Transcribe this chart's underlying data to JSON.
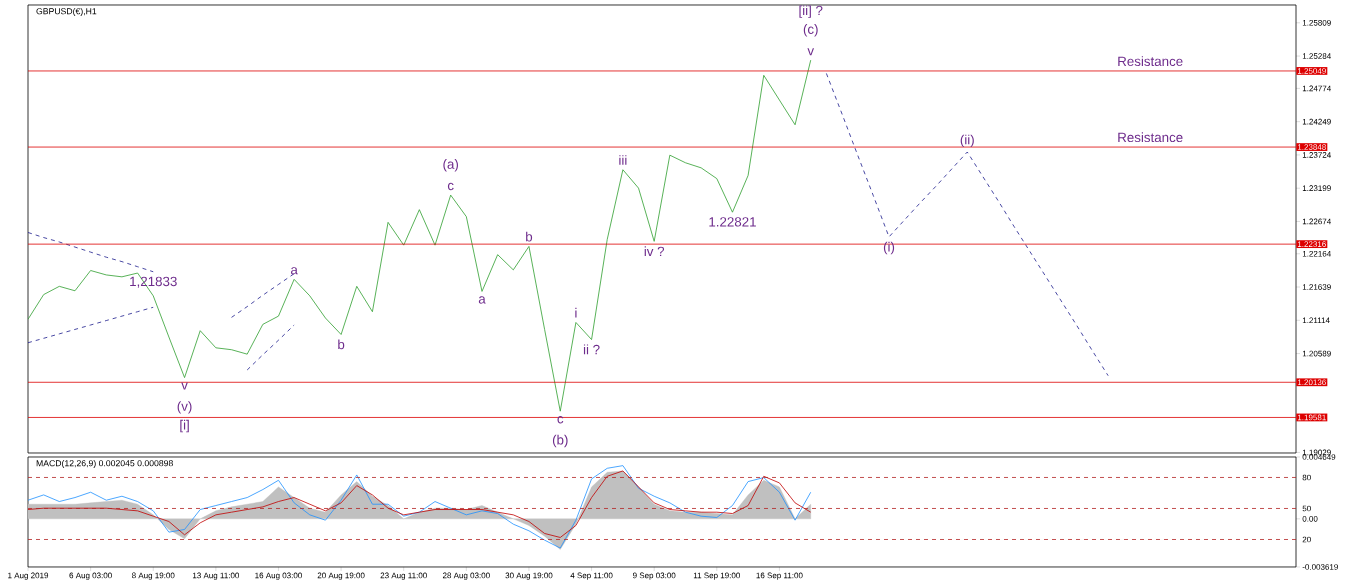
{
  "chart_data": [
    {
      "type": "line",
      "title": "GBPUSD(€),H1",
      "categories": [
        null,
        null,
        null,
        null,
        null,
        null,
        null,
        null,
        null,
        null,
        null,
        null,
        null,
        null,
        null,
        null,
        null,
        null,
        null,
        null,
        null,
        null,
        null,
        null,
        null,
        null,
        null,
        null,
        null,
        null,
        null,
        null,
        null,
        null,
        null,
        null,
        null,
        null,
        null,
        null,
        null,
        null,
        null,
        null,
        null,
        null,
        null,
        null,
        null,
        null,
        null,
        null,
        null,
        null,
        null,
        null,
        null,
        null,
        null,
        null,
        null,
        null,
        null,
        null,
        null,
        null,
        null,
        null,
        null,
        null,
        null,
        null,
        null,
        null,
        null,
        null,
        null,
        null,
        null,
        null,
        null,
        null
      ],
      "ylim": [
        1.1902,
        1.2609
      ],
      "tick_labels": "y",
      "yticks": [
        1.25809,
        1.25284,
        1.24774,
        1.24249,
        1.23724,
        1.23199,
        1.22674,
        1.22164,
        1.21639,
        1.21114,
        1.20589,
        1.19029
      ],
      "grid": false,
      "marker": "none",
      "series": [
        {
          "color": "#2e9e2e",
          "line_style": "solid",
          "values": [
            1.2113,
            1.2152,
            1.2165,
            1.2158,
            1.219,
            1.2183,
            1.218,
            1.2186,
            1.215,
            1.2085,
            1.2021,
            1.2095,
            1.2068,
            1.2065,
            1.2058,
            1.2105,
            1.2118,
            1.2176,
            1.215,
            1.2115,
            1.2089,
            1.2165,
            1.2125,
            1.2266,
            1.223,
            1.2286,
            1.223,
            1.2309,
            1.2275,
            1.2157,
            1.2215,
            1.2191,
            1.2228,
            1.2097,
            1.1968,
            1.2108,
            1.2081,
            1.2239,
            1.2349,
            1.232,
            1.2236,
            1.2372,
            1.236,
            1.2352,
            1.2335,
            1.2282,
            1.234,
            1.2498,
            1.2459,
            1.242,
            1.2522,
            null,
            null,
            null,
            null,
            null,
            null,
            null,
            null,
            null,
            null,
            null,
            null,
            null,
            null,
            null,
            null,
            null,
            null,
            null,
            null,
            null,
            null,
            null,
            null,
            null,
            null,
            null,
            null,
            null,
            null,
            null
          ]
        },
        {
          "color": "#1a1a8c",
          "line_style": "dashed",
          "values": [
            1.225,
            1.2242,
            1.2235,
            1.2227,
            1.2219,
            1.2211,
            1.2204,
            1.2196,
            1.2188,
            null,
            null,
            null,
            null,
            null,
            null,
            null,
            null,
            null,
            null,
            null,
            null,
            null,
            null,
            null,
            null,
            null,
            null,
            null,
            null,
            null,
            null,
            null,
            null,
            null,
            null,
            null,
            null,
            null,
            null,
            null,
            null,
            null,
            null,
            null,
            null,
            null,
            null,
            null,
            null,
            null,
            null,
            null,
            null,
            null,
            null,
            null,
            null,
            null,
            null,
            null,
            null,
            null,
            null,
            null,
            null,
            null,
            null,
            null,
            null,
            null,
            null,
            null,
            null,
            null,
            null,
            null,
            null,
            null,
            null,
            null,
            null,
            null
          ]
        },
        {
          "color": "#1a1a8c",
          "line_style": "dashed",
          "values": [
            1.2076,
            1.2083,
            1.209,
            1.2097,
            1.2104,
            1.2111,
            1.2118,
            1.2125,
            1.2132,
            null,
            null,
            null,
            null,
            null,
            null,
            null,
            null,
            null,
            null,
            null,
            null,
            null,
            null,
            null,
            null,
            null,
            null,
            null,
            null,
            null,
            null,
            null,
            null,
            null,
            null,
            null,
            null,
            null,
            null,
            null,
            null,
            null,
            null,
            null,
            null,
            null,
            null,
            null,
            null,
            null,
            null,
            null,
            null,
            null,
            null,
            null,
            null,
            null,
            null,
            null,
            null,
            null,
            null,
            null,
            null,
            null,
            null,
            null,
            null,
            null,
            null,
            null,
            null,
            null,
            null,
            null,
            null,
            null,
            null,
            null,
            null,
            null
          ]
        },
        {
          "color": "#1a1a8c",
          "line_style": "dashed",
          "values": [
            null,
            null,
            null,
            null,
            null,
            null,
            null,
            null,
            null,
            null,
            null,
            null,
            null,
            1.2116,
            1.2133,
            1.2151,
            1.2168,
            1.2185,
            null,
            null,
            null,
            null,
            null,
            null,
            null,
            null,
            null,
            null,
            null,
            null,
            null,
            null,
            null,
            null,
            null,
            null,
            null,
            null,
            null,
            null,
            null,
            null,
            null,
            null,
            null,
            null,
            null,
            null,
            null,
            null,
            null,
            null,
            null,
            null,
            null,
            null,
            null,
            null,
            null,
            null,
            null,
            null,
            null,
            null,
            null,
            null,
            null,
            null,
            null,
            null,
            null,
            null,
            null,
            null,
            null,
            null,
            null,
            null,
            null,
            null,
            null,
            null
          ]
        },
        {
          "color": "#1a1a8c",
          "line_style": "dashed",
          "values": [
            null,
            null,
            null,
            null,
            null,
            null,
            null,
            null,
            null,
            null,
            null,
            null,
            null,
            null,
            1.2033,
            1.2057,
            1.208,
            1.2104,
            null,
            null,
            null,
            null,
            null,
            null,
            null,
            null,
            null,
            null,
            null,
            null,
            null,
            null,
            null,
            null,
            null,
            null,
            null,
            null,
            null,
            null,
            null,
            null,
            null,
            null,
            null,
            null,
            null,
            null,
            null,
            null,
            null,
            null,
            null,
            null,
            null,
            null,
            null,
            null,
            null,
            null,
            null,
            null,
            null,
            null,
            null,
            null,
            null,
            null,
            null,
            null,
            null,
            null,
            null,
            null,
            null,
            null,
            null,
            null,
            null,
            null,
            null,
            null
          ]
        },
        {
          "color": "#1a1a8c",
          "line_style": "dashed",
          "values": [
            null,
            null,
            null,
            null,
            null,
            null,
            null,
            null,
            null,
            null,
            null,
            null,
            null,
            null,
            null,
            null,
            null,
            null,
            null,
            null,
            null,
            null,
            null,
            null,
            null,
            null,
            null,
            null,
            null,
            null,
            null,
            null,
            null,
            null,
            null,
            null,
            null,
            null,
            null,
            null,
            null,
            null,
            null,
            null,
            null,
            null,
            null,
            null,
            null,
            null,
            null,
            1.2501,
            1.2437,
            1.2372,
            1.2308,
            1.2243,
            1.227,
            1.2297,
            1.2323,
            1.235,
            1.2377,
            1.2338,
            1.2299,
            1.2259,
            1.222,
            1.2181,
            1.2142,
            1.2103,
            1.2063,
            1.2024,
            null,
            null,
            null,
            null,
            null,
            null,
            null,
            null,
            null,
            null,
            null,
            null
          ]
        }
      ],
      "ref_lines": [
        {
          "axis": "y",
          "value": 1.25049,
          "label": "1.25049",
          "color": "#dd0000",
          "line_style": "solid"
        },
        {
          "axis": "y",
          "value": 1.23848,
          "label": "1.23848",
          "color": "#dd0000",
          "line_style": "solid"
        },
        {
          "axis": "y",
          "value": 1.22316,
          "label": "1.22316",
          "color": "#dd0000",
          "line_style": "solid"
        },
        {
          "axis": "y",
          "value": 1.20136,
          "label": "1.20136",
          "color": "#dd0000",
          "line_style": "solid"
        },
        {
          "axis": "y",
          "value": 1.19581,
          "label": "1.19581",
          "color": "#dd0000",
          "line_style": "solid"
        }
      ],
      "annotations": [
        {
          "text": "v",
          "y": 1.2522
        },
        {
          "text": "(c)",
          "y": 1.2522
        },
        "[ii] ?",
        {
          "text": "Resistance",
          "y": 1.25049
        },
        {
          "text": "Resistance",
          "y": 1.23848
        },
        {
          "text": "(ii)",
          "y": 1.2377
        },
        {
          "text": "(i)",
          "y": 1.2243
        },
        {
          "text": "iii",
          "y": 1.2349
        },
        {
          "text": "c",
          "y": 1.2309
        },
        {
          "text": "(a)",
          "y": 1.2309
        },
        {
          "text": "a",
          "y": 1.2176
        },
        {
          "text": "b",
          "y": 1.2228
        },
        {
          "text": "a",
          "y": 1.2157
        },
        {
          "text": "iv ?",
          "y": 1.2236
        },
        {
          "text": "i",
          "y": 1.2108
        },
        {
          "text": "ii ?",
          "y": 1.2081
        },
        {
          "text": "b",
          "y": 1.2089
        },
        {
          "text": "v",
          "y": 1.2021
        },
        {
          "text": "(v)",
          "y": 1.2021
        },
        "[i]",
        {
          "text": "c",
          "y": 1.1968
        },
        {
          "text": "(b)",
          "y": 1.1968
        },
        {
          "text": "1,21833",
          "y": 1.2188
        },
        {
          "text": "1.22821",
          "y": 1.2282
        }
      ]
    },
    {
      "type": "line",
      "title": "MACD(12,26,9) 0.002045 0.000898",
      "categories": [
        "1 Aug 2019",
        null,
        null,
        null,
        "6 Aug 03:00",
        null,
        null,
        null,
        "8 Aug 19:00",
        null,
        null,
        null,
        "13 Aug 11:00",
        null,
        null,
        null,
        "16 Aug 03:00",
        null,
        null,
        null,
        "20 Aug 19:00",
        null,
        null,
        null,
        "23 Aug 11:00",
        null,
        null,
        null,
        "28 Aug 03:00",
        null,
        null,
        null,
        "30 Aug 19:00",
        null,
        null,
        null,
        "4 Sep 11:00",
        null,
        null,
        null,
        "9 Sep 03:00",
        null,
        null,
        null,
        "11 Sep 19:00",
        null,
        null,
        null,
        "16 Sep 11:00",
        null,
        null,
        null,
        null,
        null,
        null,
        null,
        null,
        null,
        null,
        null,
        null,
        null,
        null,
        null,
        null,
        null,
        null,
        null,
        null,
        null,
        null,
        null,
        null,
        null,
        null,
        null,
        null,
        null,
        null,
        null,
        null,
        null
      ],
      "ylim": [
        -0.003619,
        0.004649
      ],
      "yticks": [
        0.004649,
        {
          "value": 0,
          "label": "0.00"
        },
        -0.003619
      ],
      "y2lim": [
        -6.6,
        99.8
      ],
      "y2ticks": [
        80,
        50,
        20
      ],
      "grid": false,
      "marker": "none",
      "series": [
        {
          "type": "area",
          "color": "#c0c0c0",
          "values": [
            0.0011,
            0.0011,
            0.0011,
            0.0011,
            0.0012,
            0.0013,
            0.0014,
            0.0011,
            0.0003,
            -0.0008,
            -0.0015,
            0.0,
            0.0006,
            0.0009,
            0.0011,
            0.0013,
            0.0024,
            0.0016,
            0.0008,
            0.0005,
            0.0018,
            0.0028,
            0.0017,
            0.001,
            0.0,
            0.0005,
            0.0008,
            0.0008,
            0.0007,
            0.001,
            0.0005,
            0.0,
            -0.0005,
            -0.0013,
            -0.0023,
            -0.0004,
            0.0024,
            0.0035,
            0.0036,
            0.0024,
            0.0011,
            0.0006,
            0.0005,
            0.0005,
            0.0004,
            0.0003,
            0.0018,
            0.0029,
            0.0024,
            0.0,
            0.0011,
            null,
            null,
            null,
            null,
            null,
            null,
            null,
            null,
            null,
            null,
            null,
            null,
            null,
            null,
            null,
            null,
            null,
            null,
            null,
            null,
            null,
            null,
            null,
            null,
            null,
            null,
            null,
            null,
            null,
            null,
            null
          ]
        },
        {
          "type": "line",
          "color": "#1e90ff",
          "line_style": "solid",
          "values": [
            0.0014,
            0.0018,
            0.0013,
            0.0016,
            0.002,
            0.0014,
            0.0017,
            0.0013,
            0.0006,
            -0.001,
            -0.0008,
            0.0007,
            0.001,
            0.0013,
            0.0016,
            0.0022,
            0.0029,
            0.0012,
            0.0003,
            -0.0001,
            0.0014,
            0.0033,
            0.0011,
            0.0011,
            0.0002,
            0.0005,
            0.0013,
            0.0008,
            0.0003,
            0.0006,
            0.0004,
            -0.0004,
            -0.0009,
            -0.0016,
            -0.0022,
            -0.0001,
            0.003,
            0.0038,
            0.004,
            0.0023,
            0.0017,
            0.0012,
            0.0005,
            0.0002,
            0.0001,
            0.001,
            0.0028,
            0.0031,
            0.002,
            -0.0001,
            0.002,
            null,
            null,
            null,
            null,
            null,
            null,
            null,
            null,
            null,
            null,
            null,
            null,
            null,
            null,
            null,
            null,
            null,
            null,
            null,
            null,
            null,
            null,
            null,
            null,
            null,
            null,
            null,
            null,
            null,
            null,
            null
          ]
        },
        {
          "type": "line",
          "color": "#c00000",
          "line_style": "solid",
          "values": [
            0.0007,
            0.0008,
            0.0008,
            0.0008,
            0.0008,
            0.0008,
            0.0007,
            0.0006,
            0.0002,
            -0.0002,
            -0.0012,
            -0.0003,
            0.0003,
            0.0005,
            0.0007,
            0.0009,
            0.0013,
            0.0016,
            0.0011,
            0.0006,
            0.0012,
            0.0025,
            0.0018,
            0.0008,
            0.0003,
            0.0005,
            0.0007,
            0.0007,
            0.0007,
            0.0007,
            0.0005,
            0.0003,
            -0.0002,
            -0.0011,
            -0.0014,
            -0.0005,
            0.0016,
            0.0032,
            0.0036,
            0.0024,
            0.0012,
            0.0007,
            0.0006,
            0.0005,
            0.0005,
            0.0004,
            0.001,
            0.0032,
            0.0027,
            0.0012,
            0.0005,
            null,
            null,
            null,
            null,
            null,
            null,
            null,
            null,
            null,
            null,
            null,
            null,
            null,
            null,
            null,
            null,
            null,
            null,
            null,
            null,
            null,
            null,
            null,
            null,
            null,
            null,
            null,
            null,
            null,
            null,
            null
          ]
        }
      ],
      "ref_lines": [
        {
          "axis": "y2",
          "value": 80,
          "color": "#b22222",
          "line_style": "dashed"
        },
        {
          "axis": "y2",
          "value": 50,
          "color": "#b22222",
          "line_style": "dashed"
        },
        {
          "axis": "y2",
          "value": 20,
          "color": "#b22222",
          "line_style": "dashed"
        }
      ]
    }
  ]
}
